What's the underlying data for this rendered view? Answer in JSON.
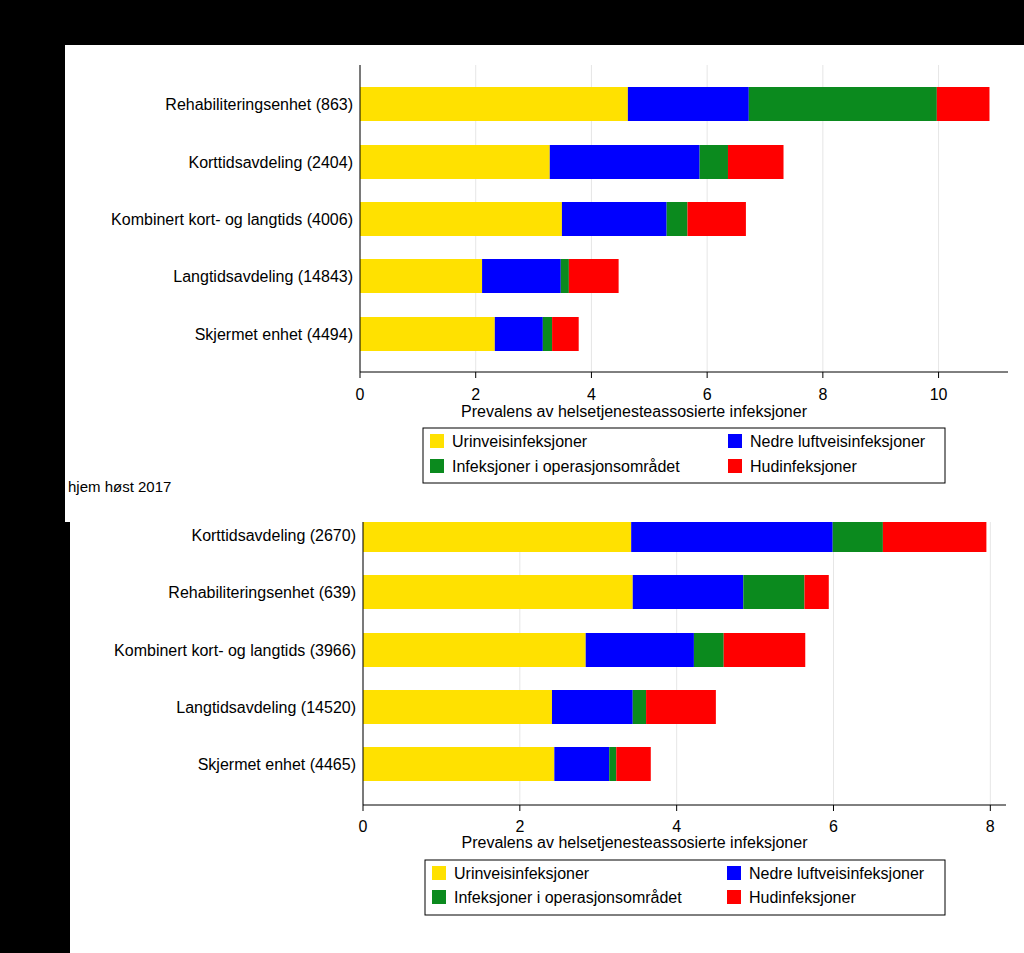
{
  "chart_data": [
    {
      "type": "bar",
      "orientation": "horizontal",
      "stacked": true,
      "grid": true,
      "legend": "bottom",
      "annotations": [
        "hjem høst 2017"
      ],
      "xlabel": "Prevalens av helsetjenesteassosierte infeksjoner",
      "categories": [
        "Rehabiliteringsenhet (863)",
        "Korttidsavdeling (2404)",
        "Kombinert kort- og langtids (4006)",
        "Langtidsavdeling (14843)",
        "Skjermet enhet (4494)"
      ],
      "series": [
        {
          "name": "Urinveisinfeksjoner",
          "color": "#ffe100",
          "values": [
            4.63,
            3.28,
            3.49,
            2.11,
            2.33
          ]
        },
        {
          "name": "Nedre luftveisinfeksjoner",
          "color": "#0000ff",
          "values": [
            2.09,
            2.59,
            1.81,
            1.36,
            0.83
          ]
        },
        {
          "name": "Infeksjoner i operasjonsområdet",
          "color": "#0b8a1e",
          "values": [
            3.25,
            0.49,
            0.36,
            0.14,
            0.16
          ]
        },
        {
          "name": "Hudinfeksjoner",
          "color": "#ff0000",
          "values": [
            0.91,
            0.96,
            1.01,
            0.86,
            0.46
          ]
        }
      ],
      "xlim": [
        0,
        11.2
      ],
      "xticks": [
        0,
        2,
        4,
        6,
        8,
        10
      ]
    },
    {
      "type": "bar",
      "orientation": "horizontal",
      "stacked": true,
      "grid": true,
      "legend": "bottom",
      "xlabel": "Prevalens av helsetjenesteassosierte infeksjoner",
      "categories": [
        "Korttidsavdeling (2670)",
        "Rehabiliteringsenhet (639)",
        "Kombinert kort- og langtids (3966)",
        "Langtidsavdeling (14520)",
        "Skjermet enhet (4465)"
      ],
      "series": [
        {
          "name": "Urinveisinfeksjoner",
          "color": "#ffe100",
          "values": [
            3.42,
            3.44,
            2.84,
            2.41,
            2.44
          ]
        },
        {
          "name": "Nedre luftveisinfeksjoner",
          "color": "#0000ff",
          "values": [
            2.57,
            1.41,
            1.38,
            1.03,
            0.7
          ]
        },
        {
          "name": "Infeksjoner i operasjonsområdet",
          "color": "#0b8a1e",
          "values": [
            0.64,
            0.78,
            0.38,
            0.17,
            0.09
          ]
        },
        {
          "name": "Hudinfeksjoner",
          "color": "#ff0000",
          "values": [
            1.32,
            0.31,
            1.04,
            0.89,
            0.44
          ]
        }
      ],
      "xlim": [
        0,
        8.2
      ],
      "xticks": [
        0,
        2,
        4,
        6,
        8
      ]
    }
  ]
}
